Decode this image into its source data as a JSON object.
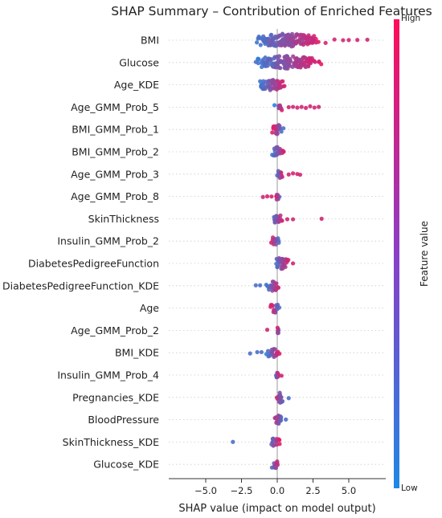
{
  "chart_data": {
    "type": "scatter",
    "subtype": "shap-beeswarm",
    "title": "SHAP Summary – Contribution of Enriched Features",
    "xlabel": "SHAP value (impact on model output)",
    "ylabel": "",
    "xlim": [
      -7.0,
      7.0
    ],
    "xticks": [
      -5.0,
      -2.5,
      0.0,
      2.5,
      5.0
    ],
    "xtick_labels": [
      "−5.0",
      "−2.5",
      "0.0",
      "2.5",
      "5.0"
    ],
    "grid": false,
    "colorbar": {
      "label": "Feature value",
      "high_label": "High",
      "low_label": "Low",
      "low_color": "#1e88e5",
      "high_color": "#ff0d57"
    },
    "features": [
      {
        "name": "BMI",
        "min": -1.9,
        "max": 3.5,
        "outliers": [
          4.0,
          4.6,
          5.0,
          5.6,
          6.3
        ],
        "trend": 1,
        "density": 1.0
      },
      {
        "name": "Glucose",
        "min": -1.7,
        "max": 3.3,
        "outliers": [
          -1.5
        ],
        "trend": 1,
        "density": 1.0
      },
      {
        "name": "Age_KDE",
        "min": -1.3,
        "max": 0.7,
        "outliers": [],
        "trend": 1,
        "density": 0.8
      },
      {
        "name": "Age_GMM_Prob_5",
        "min": -0.2,
        "max": 0.4,
        "outliers": [
          0.8,
          1.1,
          1.4,
          1.7,
          2.0,
          2.3,
          2.6,
          2.9
        ],
        "trend": 1,
        "density": 0.5
      },
      {
        "name": "BMI_GMM_Prob_1",
        "min": -0.4,
        "max": 0.5,
        "outliers": [],
        "trend": -1,
        "density": 0.7
      },
      {
        "name": "BMI_GMM_Prob_2",
        "min": -0.4,
        "max": 0.5,
        "outliers": [],
        "trend": 1,
        "density": 0.7
      },
      {
        "name": "Age_GMM_Prob_3",
        "min": -0.1,
        "max": 0.4,
        "outliers": [
          0.8,
          1.1,
          1.4,
          1.6
        ],
        "trend": 1,
        "density": 0.5
      },
      {
        "name": "Age_GMM_Prob_8",
        "min": -0.1,
        "max": 0.2,
        "outliers": [
          -1.0,
          -0.7,
          -0.4
        ],
        "trend": -1,
        "density": 0.4
      },
      {
        "name": "SkinThickness",
        "min": -0.4,
        "max": 0.4,
        "outliers": [
          0.7,
          1.1,
          3.1
        ],
        "trend": 1,
        "density": 0.6
      },
      {
        "name": "Insulin_GMM_Prob_2",
        "min": -0.5,
        "max": 0.2,
        "outliers": [],
        "trend": -1,
        "density": 0.5
      },
      {
        "name": "DiabetesPedigreeFunction",
        "min": -0.3,
        "max": 0.9,
        "outliers": [
          1.1
        ],
        "trend": 1,
        "density": 0.8
      },
      {
        "name": "DiabetesPedigreeFunction_KDE",
        "min": -0.8,
        "max": 0.2,
        "outliers": [
          -1.5,
          -1.2
        ],
        "trend": 1,
        "density": 0.7
      },
      {
        "name": "Age",
        "min": -0.5,
        "max": 0.2,
        "outliers": [],
        "trend": -1,
        "density": 0.6
      },
      {
        "name": "Age_GMM_Prob_2",
        "min": 0.0,
        "max": 0.1,
        "outliers": [
          -0.7
        ],
        "trend": -1,
        "density": 0.3
      },
      {
        "name": "BMI_KDE",
        "min": -0.8,
        "max": 0.2,
        "outliers": [
          -1.9,
          -1.4,
          -1.1
        ],
        "trend": 1,
        "density": 0.6
      },
      {
        "name": "Insulin_GMM_Prob_4",
        "min": -0.1,
        "max": 0.1,
        "outliers": [
          0.3
        ],
        "trend": 1,
        "density": 0.3
      },
      {
        "name": "Pregnancies_KDE",
        "min": -0.2,
        "max": 0.5,
        "outliers": [
          0.8
        ],
        "trend": -1,
        "density": 0.8
      },
      {
        "name": "BloodPressure",
        "min": -0.3,
        "max": 0.4,
        "outliers": [
          0.6
        ],
        "trend": -1,
        "density": 0.7
      },
      {
        "name": "SkinThickness_KDE",
        "min": -0.6,
        "max": 0.2,
        "outliers": [
          -3.1
        ],
        "trend": 1,
        "density": 0.5
      },
      {
        "name": "Glucose_KDE",
        "min": -0.5,
        "max": 0.2,
        "outliers": [],
        "trend": 1,
        "density": 0.5
      }
    ]
  }
}
